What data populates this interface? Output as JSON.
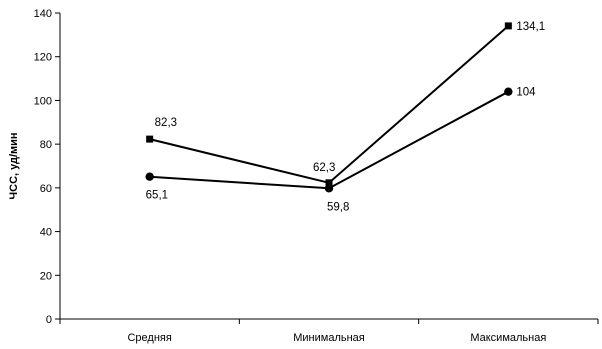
{
  "chart_data": {
    "type": "line",
    "title": "",
    "xlabel": "",
    "ylabel": "ЧСС, уд/мин",
    "categories": [
      "Средняя",
      "Минимальная",
      "Максимальная"
    ],
    "ylim": [
      0,
      140
    ],
    "yticks": [
      0,
      20,
      40,
      60,
      80,
      100,
      120,
      140
    ],
    "grid": false,
    "legend": "none",
    "series": [
      {
        "marker": "square",
        "color": "#000000",
        "values": [
          82.3,
          62.3,
          134.1
        ],
        "labels": [
          "82,3",
          "62,3",
          "134,1"
        ]
      },
      {
        "marker": "circle",
        "color": "#000000",
        "values": [
          65.1,
          59.8,
          104
        ],
        "labels": [
          "65,1",
          "59,8",
          "104"
        ]
      }
    ]
  }
}
